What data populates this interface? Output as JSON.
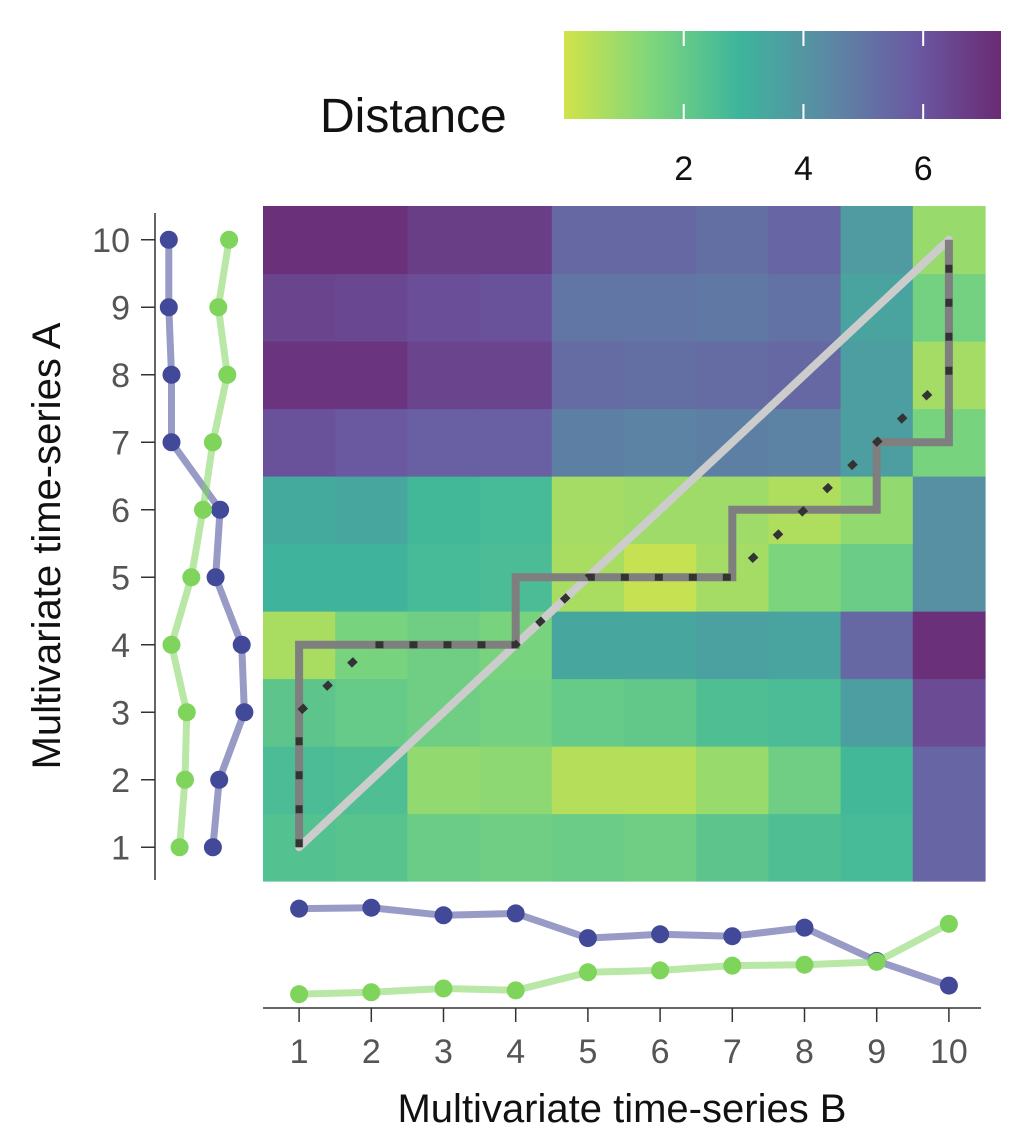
{
  "chart_data": {
    "type": "heatmap",
    "xlabel": "Multivariate time-series B",
    "ylabel": "Multivariate time-series A",
    "x_ticks": [
      1,
      2,
      3,
      4,
      5,
      6,
      7,
      8,
      9,
      10
    ],
    "y_ticks": [
      1,
      2,
      3,
      4,
      5,
      6,
      7,
      8,
      9,
      10
    ],
    "colorbar": {
      "title": "Distance",
      "ticks": [
        2,
        4,
        6
      ],
      "range": [
        0,
        7.3
      ],
      "colors": [
        "#d1e34a",
        "#7ed67c",
        "#3db59c",
        "#5b8aa4",
        "#6a5aa3",
        "#6a2b74"
      ]
    },
    "distance_matrix_rows_a1_to_a10": [
      [
        2.4,
        2.3,
        1.9,
        1.8,
        1.9,
        1.8,
        2.2,
        2.5,
        2.7,
        5.5
      ],
      [
        2.6,
        2.5,
        1.1,
        1.2,
        0.5,
        0.5,
        1.0,
        1.8,
        2.8,
        5.5
      ],
      [
        2.2,
        2.0,
        1.8,
        1.7,
        2.0,
        2.1,
        2.5,
        2.6,
        3.7,
        6.3
      ],
      [
        0.7,
        1.6,
        1.8,
        1.6,
        3.4,
        3.4,
        3.6,
        3.5,
        5.4,
        7.1
      ],
      [
        3.0,
        3.0,
        2.7,
        2.6,
        0.7,
        0.2,
        0.8,
        1.5,
        1.9,
        4.2
      ],
      [
        3.3,
        3.4,
        2.8,
        2.7,
        0.8,
        0.9,
        0.9,
        0.6,
        1.1,
        4.2
      ],
      [
        6.1,
        5.9,
        5.7,
        5.7,
        4.7,
        4.6,
        4.7,
        4.6,
        3.7,
        1.6
      ],
      [
        7.0,
        7.0,
        6.5,
        6.5,
        5.3,
        5.2,
        5.3,
        5.4,
        3.7,
        0.8
      ],
      [
        6.5,
        6.4,
        6.2,
        6.1,
        5.0,
        5.0,
        4.9,
        5.1,
        3.5,
        1.7
      ],
      [
        7.1,
        7.1,
        6.7,
        6.7,
        5.4,
        5.4,
        5.2,
        5.5,
        3.8,
        1.0
      ]
    ],
    "warping_path": [
      [
        1,
        1
      ],
      [
        1,
        2
      ],
      [
        1,
        3
      ],
      [
        1,
        4
      ],
      [
        2,
        4
      ],
      [
        3,
        4
      ],
      [
        4,
        4
      ],
      [
        4,
        5
      ],
      [
        5,
        5
      ],
      [
        6,
        5
      ],
      [
        7,
        5
      ],
      [
        7,
        6
      ],
      [
        8,
        6
      ],
      [
        9,
        6
      ],
      [
        9,
        7
      ],
      [
        10,
        7
      ],
      [
        10,
        8
      ],
      [
        10,
        9
      ],
      [
        10,
        10
      ]
    ],
    "diagonal_path": [
      [
        1,
        1
      ],
      [
        10,
        10
      ]
    ],
    "dotted_path": [
      [
        1,
        1
      ],
      [
        1,
        2
      ],
      [
        1,
        3
      ],
      [
        1.5,
        3.5
      ],
      [
        2,
        4
      ],
      [
        3,
        4
      ],
      [
        4,
        4
      ],
      [
        4.5,
        4.5
      ],
      [
        5,
        5
      ],
      [
        6,
        5
      ],
      [
        7,
        5
      ],
      [
        7.5,
        5.5
      ],
      [
        8,
        6
      ],
      [
        8.5,
        6.5
      ],
      [
        9,
        7
      ],
      [
        9.5,
        7.5
      ],
      [
        10,
        8
      ],
      [
        10,
        9
      ],
      [
        10,
        10
      ]
    ],
    "series_b": {
      "x": [
        1,
        2,
        3,
        4,
        5,
        6,
        7,
        8,
        9,
        10
      ],
      "purple": [
        0.93,
        0.94,
        0.86,
        0.88,
        0.62,
        0.66,
        0.64,
        0.73,
        0.38,
        0.12
      ],
      "green": [
        0.03,
        0.05,
        0.09,
        0.07,
        0.26,
        0.28,
        0.33,
        0.34,
        0.37,
        0.77
      ]
    },
    "series_a": {
      "y": [
        1,
        2,
        3,
        4,
        5,
        6,
        7,
        8,
        9,
        10
      ],
      "purple": [
        0.61,
        0.68,
        0.96,
        0.93,
        0.64,
        0.69,
        0.15,
        0.15,
        0.12,
        0.12
      ],
      "green": [
        0.24,
        0.3,
        0.32,
        0.15,
        0.37,
        0.5,
        0.61,
        0.77,
        0.67,
        0.79
      ]
    },
    "series_colors": {
      "purple": "#414998",
      "green": "#7fd45c"
    },
    "path_colors": {
      "warping": "#7f7f7f",
      "diagonal": "#cccccc",
      "dotted": "#333333"
    }
  }
}
